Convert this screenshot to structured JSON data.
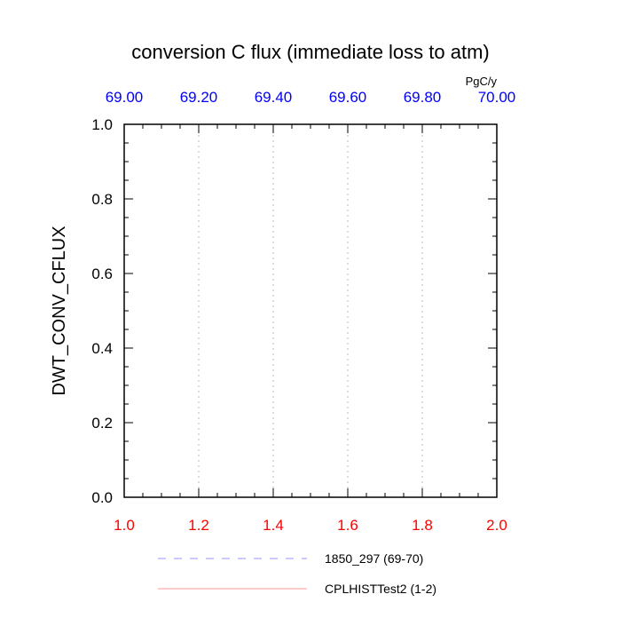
{
  "chart_data": {
    "type": "line",
    "title": "conversion C flux (immediate loss to atm)",
    "ylabel": "DWT_CONV_CFLUX",
    "units": "PgC/y",
    "ylim": [
      0.0,
      1.0
    ],
    "yticks": [
      "0.0",
      "0.2",
      "0.4",
      "0.6",
      "0.8",
      "1.0"
    ],
    "bottom_axis": {
      "range": [
        1.0,
        2.0
      ],
      "ticks": [
        "1.0",
        "1.2",
        "1.4",
        "1.6",
        "1.8",
        "2.0"
      ],
      "color": "#ff0000"
    },
    "top_axis": {
      "range": [
        69.0,
        70.0
      ],
      "ticks": [
        "69.00",
        "69.20",
        "69.40",
        "69.60",
        "69.80",
        "70.00"
      ],
      "color": "#0000ff"
    },
    "grid": "vertical dotted",
    "legend_position": "bottom",
    "series": [
      {
        "name": "1850_297 (69-70)",
        "color": "#0000ff",
        "style": "dashed",
        "x": [],
        "y": []
      },
      {
        "name": "CPLHISTTest2 (1-2)",
        "color": "#ff0000",
        "style": "solid",
        "x": [],
        "y": []
      }
    ]
  }
}
